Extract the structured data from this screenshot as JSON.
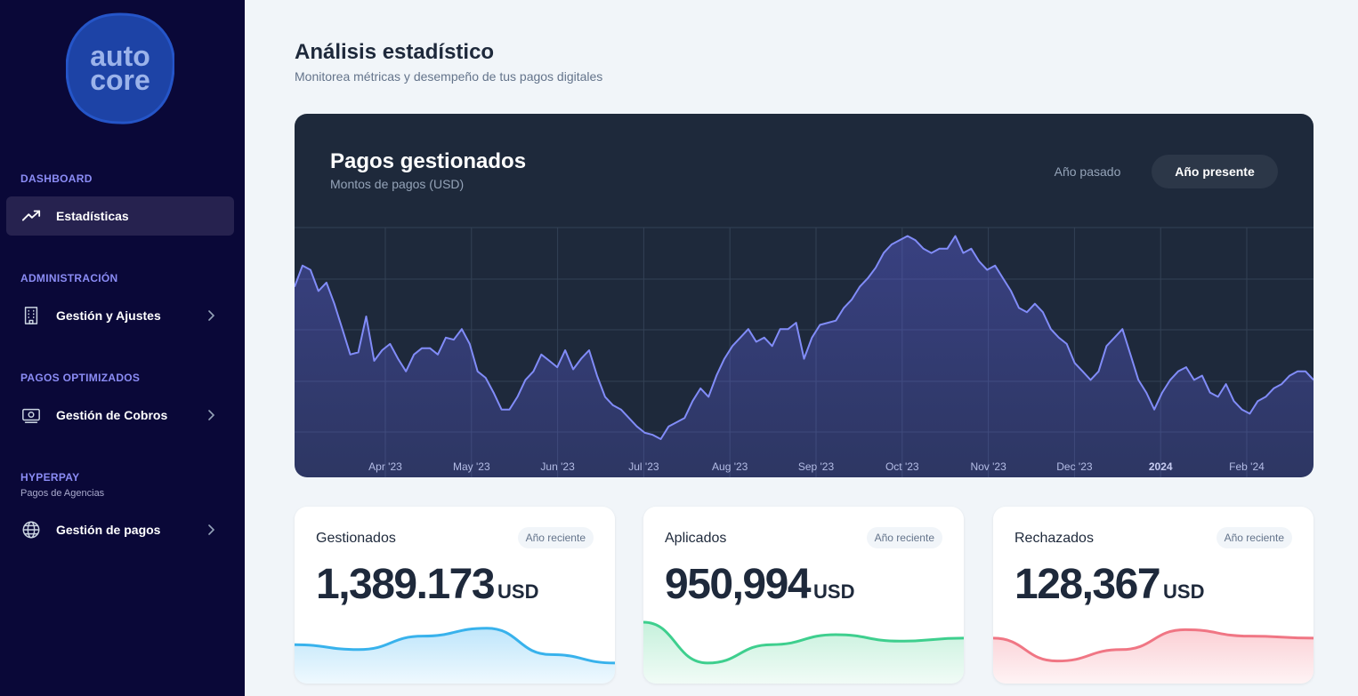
{
  "brand": {
    "logo_line1": "auto",
    "logo_line2": "core"
  },
  "sidebar": {
    "sections": [
      {
        "label": "DASHBOARD",
        "items": [
          {
            "label": "Estadísticas",
            "icon": "trending-up-icon",
            "active": true
          }
        ]
      },
      {
        "label": "ADMINISTRACIÓN",
        "items": [
          {
            "label": "Gestión y Ajustes",
            "icon": "building-icon"
          }
        ]
      },
      {
        "label": "PAGOS OPTIMIZADOS",
        "items": [
          {
            "label": "Gestión de Cobros",
            "icon": "banknote-icon"
          }
        ]
      },
      {
        "label": "HYPERPAY",
        "sublabel": "Pagos de Agencias",
        "items": [
          {
            "label": "Gestión de pagos",
            "icon": "globe-icon"
          }
        ]
      }
    ]
  },
  "header": {
    "title": "Análisis estadístico",
    "subtitle": "Monitorea métricas y desempeño de tus pagos digitales"
  },
  "main_chart": {
    "title": "Pagos gestionados",
    "subtitle": "Montos de pagos (USD)",
    "toggle": {
      "past": "Año pasado",
      "present": "Año presente",
      "selected": "present"
    }
  },
  "chart_data": {
    "type": "area",
    "title": "Pagos gestionados",
    "subtitle": "Montos de pagos (USD)",
    "x_ticks": [
      "Apr '23",
      "May '23",
      "Jun '23",
      "Jul '23",
      "Aug '23",
      "Sep '23",
      "Oct '23",
      "Nov '23",
      "Dec '23",
      "2024",
      "Feb '24"
    ],
    "bold_ticks": [
      "2024"
    ],
    "ylim": [
      0,
      100
    ],
    "grid": true,
    "series": [
      {
        "name": "Pagos gestionados",
        "values": [
          72,
          82,
          80,
          70,
          74,
          64,
          52,
          40,
          41,
          58,
          37,
          42,
          45,
          38,
          32,
          40,
          43,
          43,
          40,
          48,
          47,
          52,
          45,
          32,
          29,
          22,
          14,
          14,
          20,
          28,
          32,
          40,
          37,
          34,
          42,
          33,
          38,
          42,
          30,
          20,
          16,
          14,
          10,
          6,
          3,
          2,
          0,
          6,
          8,
          10,
          18,
          24,
          20,
          30,
          38,
          44,
          48,
          52,
          46,
          48,
          44,
          52,
          52,
          55,
          38,
          48,
          54,
          55,
          56,
          62,
          66,
          72,
          76,
          81,
          88,
          92,
          94,
          96,
          94,
          90,
          88,
          90,
          90,
          96,
          88,
          90,
          84,
          80,
          82,
          76,
          70,
          62,
          60,
          64,
          60,
          52,
          48,
          45,
          36,
          32,
          28,
          32,
          44,
          48,
          52,
          40,
          28,
          22,
          14,
          22,
          28,
          32,
          34,
          28,
          30,
          22,
          20,
          26,
          18,
          14,
          12,
          18,
          20,
          24,
          26,
          30,
          32,
          32,
          28
        ]
      }
    ]
  },
  "stats": [
    {
      "label": "Gestionados",
      "badge": "Año reciente",
      "value": "1,389.173",
      "unit": "USD",
      "color": "#38b2ec",
      "fill": "#bfe6fb",
      "trend": [
        0.55,
        0.45,
        0.72,
        0.88,
        0.35,
        0.18
      ]
    },
    {
      "label": "Aplicados",
      "badge": "Año reciente",
      "value": "950,994",
      "unit": "USD",
      "color": "#3ecf8e",
      "fill": "#c6f1dc",
      "trend": [
        1.0,
        0.18,
        0.55,
        0.75,
        0.62,
        0.68
      ]
    },
    {
      "label": "Rechazados",
      "badge": "Año reciente",
      "value": "128,367",
      "unit": "USD",
      "color": "#f07684",
      "fill": "#fbd0d5",
      "trend": [
        0.68,
        0.22,
        0.45,
        0.85,
        0.72,
        0.68
      ]
    }
  ]
}
